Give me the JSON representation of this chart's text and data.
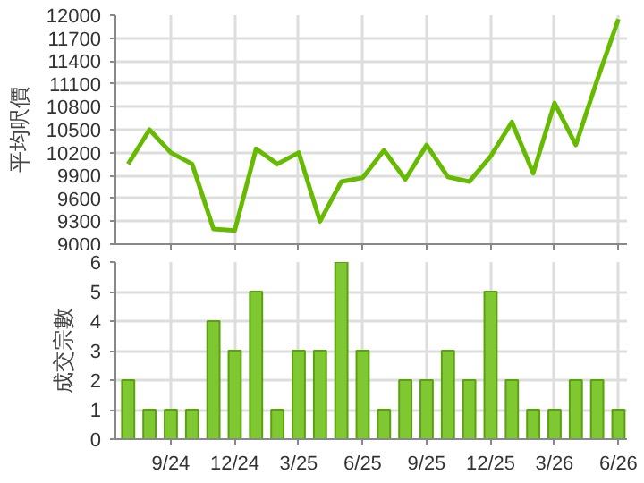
{
  "chart_data": [
    {
      "type": "line",
      "ylabel": "平均呎價",
      "series": [
        {
          "color": "#66bb00",
          "values": [
            10050,
            10500,
            10200,
            10050,
            9200,
            9180,
            10250,
            10050,
            10200,
            9300,
            9820,
            9870,
            10230,
            9850,
            10300,
            9880,
            9820,
            10150,
            10600,
            9930,
            10850,
            10300,
            11150,
            11950
          ]
        }
      ],
      "ylim": [
        9000,
        12000
      ],
      "yticks": [
        9000,
        9300,
        9600,
        9900,
        10200,
        10500,
        10800,
        11100,
        11400,
        11700,
        12000
      ],
      "grid": true,
      "tick_labels": "y",
      "marker": "none",
      "line_style": "solid"
    },
    {
      "type": "bar",
      "ylabel": "成交宗數",
      "categories": [
        null,
        null,
        "9/24",
        null,
        null,
        "12/24",
        null,
        null,
        "3/25",
        null,
        null,
        "6/25",
        null,
        null,
        "9/25",
        null,
        null,
        "12/25",
        null,
        null,
        "3/26",
        null,
        null,
        "6/26"
      ],
      "series": [
        {
          "color": "#80c832",
          "values": [
            2,
            1,
            1,
            1,
            4,
            3,
            5,
            1,
            3,
            3,
            6,
            3,
            1,
            2,
            2,
            3,
            2,
            5,
            2,
            1,
            1,
            2,
            2,
            1
          ]
        }
      ],
      "ylim": [
        0,
        6
      ],
      "yticks": [
        0,
        1,
        2,
        3,
        4,
        5,
        6
      ],
      "grid": true
    }
  ]
}
